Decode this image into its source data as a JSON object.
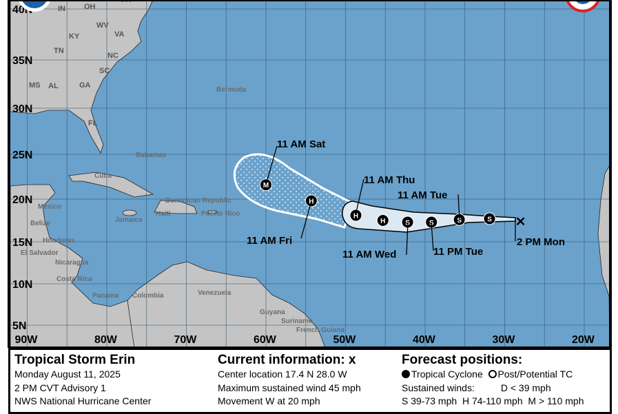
{
  "colors": {
    "ocean": "#6aa2cc",
    "land": "#c4c4c4",
    "grid": "#2f4f6a",
    "cone_day1_3": "#dde9f2",
    "cone_day4_5_fill": "#6aa2cc"
  },
  "grid": {
    "lat_labels": [
      "40N",
      "35N",
      "30N",
      "25N",
      "20N",
      "15N",
      "10N",
      "5N"
    ],
    "lon_labels": [
      "90W",
      "80W",
      "70W",
      "60W",
      "50W",
      "40W",
      "30W",
      "20W"
    ]
  },
  "places": {
    "states": [
      "IN",
      "OH",
      "PA",
      "KY",
      "WV",
      "VA",
      "TN",
      "NC",
      "SC",
      "MS",
      "AL",
      "GA",
      "FL"
    ],
    "countries": [
      "Bermuda",
      "Bahamas",
      "Cuba",
      "Mexico",
      "Belize",
      "Jamaica",
      "Dominican Republic",
      "Haiti",
      "Puerto Rico",
      "Honduras",
      "El Salvador",
      "Nicaragua",
      "Costa Rica",
      "Panama",
      "Colombia",
      "Venezuela",
      "Guyana",
      "Suriname",
      "French Guiana"
    ]
  },
  "track": {
    "current": {
      "lat": 17.4,
      "lon": -28.0,
      "label": "2 PM Mon",
      "icon": "x-mark-icon"
    },
    "points": [
      {
        "lat": 17.7,
        "lon": -31.9,
        "type": "S",
        "label": ""
      },
      {
        "lat": 17.6,
        "lon": -35.7,
        "type": "S",
        "label": "11 AM Tue"
      },
      {
        "lat": 17.3,
        "lon": -39.2,
        "type": "S",
        "label": "11 PM Tue"
      },
      {
        "lat": 17.3,
        "lon": -42.2,
        "type": "S",
        "label": "11 AM Wed"
      },
      {
        "lat": 17.5,
        "lon": -45.3,
        "type": "H",
        "label": ""
      },
      {
        "lat": 18.1,
        "lon": -48.7,
        "type": "H",
        "label": "11 AM Thu"
      },
      {
        "lat": 19.8,
        "lon": -54.3,
        "type": "H",
        "label": "11 AM Fri"
      },
      {
        "lat": 21.6,
        "lon": -60.0,
        "type": "M",
        "label": "11 AM Sat"
      }
    ]
  },
  "legend": {
    "storm": {
      "title": "Tropical Storm Erin",
      "date": "Monday August 11, 2025",
      "advisory": "2 PM CVT Advisory 1",
      "agency": "NWS National Hurricane Center"
    },
    "current": {
      "title": "Current information: ",
      "title_mark": "x",
      "center": "Center location 17.4 N 28.0 W",
      "wind": "Maximum sustained wind 45 mph",
      "movement": "Movement W at 20 mph"
    },
    "forecast": {
      "title": "Forecast positions:",
      "tc": "Tropical Cyclone",
      "ptc": "Post/Potential TC",
      "winds_label": "Sustained winds:",
      "d": "D < 39 mph",
      "s": "S 39-73 mph",
      "h": "H 74-110 mph",
      "m": "M > 110 mph"
    }
  }
}
